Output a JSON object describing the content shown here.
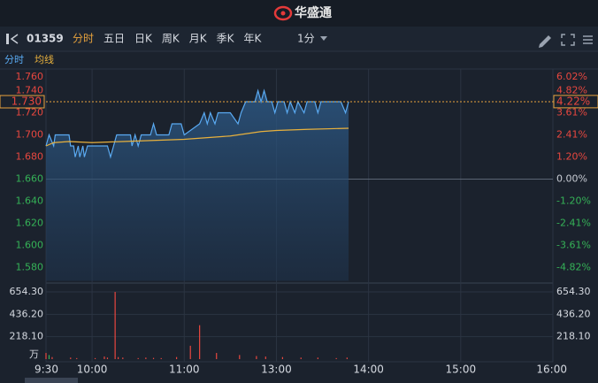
{
  "header": {
    "logo": "华盛通"
  },
  "toolbar": {
    "code": "01359",
    "tabs": [
      "分时",
      "五日",
      "日K",
      "周K",
      "月K",
      "季K",
      "年K"
    ],
    "active_tab": 0,
    "period": "1分"
  },
  "chart_data": [
    {
      "type": "line",
      "xlim": [
        0,
        330
      ],
      "ylim": [
        1.568,
        1.758
      ],
      "yticks": [
        {
          "value": 1.76,
          "label": "1.760"
        },
        {
          "value": 1.74,
          "label": "1.740"
        },
        {
          "value": 1.72,
          "label": "1.720"
        },
        {
          "value": 1.7,
          "label": "1.700"
        },
        {
          "value": 1.68,
          "label": "1.680"
        },
        {
          "value": 1.66,
          "label": "1.660"
        },
        {
          "value": 1.64,
          "label": "1.640"
        },
        {
          "value": 1.62,
          "label": "1.620"
        },
        {
          "value": 1.6,
          "label": "1.600"
        },
        {
          "value": 1.58,
          "label": "1.580"
        }
      ],
      "y2lim": [
        -5.54,
        5.9
      ],
      "y2ticks": [
        {
          "value": 6.02,
          "label": "6.02%"
        },
        {
          "value": 4.82,
          "label": "4.82%"
        },
        {
          "value": 3.61,
          "label": "3.61%"
        },
        {
          "value": 2.41,
          "label": "2.41%"
        },
        {
          "value": 1.2,
          "label": "1.20%"
        },
        {
          "value": 0,
          "label": "0.00%"
        },
        {
          "value": -1.2,
          "label": "-1.20%"
        },
        {
          "value": -2.41,
          "label": "-2.41%"
        },
        {
          "value": -3.61,
          "label": "-3.61%"
        },
        {
          "value": -4.82,
          "label": "-4.82%"
        }
      ],
      "up_color": "#e8473f",
      "down_color": "#35b257",
      "flat_color": "#c8ccd4",
      "last_price": {
        "value": 1.73,
        "label": "1.730"
      },
      "last_change": {
        "value": 4.22,
        "label": "4.22%"
      },
      "series": [
        {
          "name": "分时",
          "color": "#5aaaf2",
          "x": [
            0,
            2,
            5,
            6,
            15,
            16,
            18,
            19,
            21,
            22,
            24,
            25,
            27,
            40,
            42,
            44,
            46,
            55,
            56,
            58,
            60,
            62,
            68,
            70,
            72,
            80,
            82,
            88,
            90,
            100,
            103,
            105,
            107,
            110,
            112,
            120,
            125,
            127,
            130,
            136,
            138,
            140,
            142,
            144,
            147,
            149,
            151,
            155,
            157,
            159,
            162,
            164,
            168,
            170,
            175,
            177,
            179,
            185,
            188,
            192,
            195,
            197
          ],
          "values": [
            1.69,
            1.7,
            1.69,
            1.7,
            1.7,
            1.69,
            1.69,
            1.68,
            1.69,
            1.68,
            1.69,
            1.68,
            1.69,
            1.69,
            1.68,
            1.69,
            1.7,
            1.7,
            1.69,
            1.7,
            1.69,
            1.7,
            1.7,
            1.71,
            1.7,
            1.7,
            1.71,
            1.71,
            1.7,
            1.71,
            1.72,
            1.71,
            1.72,
            1.71,
            1.72,
            1.72,
            1.71,
            1.72,
            1.73,
            1.73,
            1.74,
            1.73,
            1.74,
            1.73,
            1.73,
            1.72,
            1.73,
            1.73,
            1.72,
            1.73,
            1.72,
            1.73,
            1.72,
            1.73,
            1.73,
            1.72,
            1.73,
            1.73,
            1.73,
            1.73,
            1.72,
            1.73
          ]
        },
        {
          "name": "均线",
          "color": "#e8b13d",
          "x": [
            0,
            5,
            15,
            30,
            50,
            70,
            90,
            110,
            120,
            130,
            140,
            150,
            170,
            197
          ],
          "values": [
            1.69,
            1.693,
            1.694,
            1.693,
            1.694,
            1.695,
            1.696,
            1.698,
            1.699,
            1.701,
            1.703,
            1.704,
            1.705,
            1.706
          ]
        }
      ]
    },
    {
      "type": "bar",
      "unit": "万",
      "xlim": [
        0,
        330
      ],
      "xticks": [
        {
          "value": 0,
          "label": "9:30"
        },
        {
          "value": 30,
          "label": "10:00"
        },
        {
          "value": 90,
          "label": "11:00"
        },
        {
          "value": 150,
          "label": "13:00"
        },
        {
          "value": 210,
          "label": "14:00"
        },
        {
          "value": 270,
          "label": "15:00"
        },
        {
          "value": 330,
          "label": "16:00"
        }
      ],
      "ylim": [
        0,
        654.3
      ],
      "yticks": [
        {
          "value": 218.1,
          "label": "218.10"
        },
        {
          "value": 436.2,
          "label": "436.20"
        },
        {
          "value": 654.3,
          "label": "654.30"
        }
      ],
      "x": [
        0,
        2,
        4,
        16,
        20,
        32,
        38,
        40,
        45,
        47,
        50,
        60,
        65,
        70,
        75,
        85,
        94,
        100,
        111,
        126,
        137,
        143,
        154,
        166,
        177,
        189,
        196
      ],
      "values": [
        60,
        40,
        20,
        15,
        10,
        10,
        25,
        15,
        654,
        20,
        15,
        10,
        15,
        12,
        10,
        20,
        130,
        330,
        60,
        40,
        30,
        25,
        20,
        15,
        15,
        10,
        15
      ],
      "colors": [
        "#e8473f",
        "#35b257",
        "#e8473f",
        "#e8473f",
        "#e8473f",
        "#e8473f",
        "#e8473f",
        "#e8473f",
        "#e8473f",
        "#e8473f",
        "#e8473f",
        "#e8473f",
        "#e8473f",
        "#e8473f",
        "#e8473f",
        "#e8473f",
        "#e8473f",
        "#e8473f",
        "#e8473f",
        "#e8473f",
        "#e8473f",
        "#e8473f",
        "#e8473f",
        "#e8473f",
        "#e8473f",
        "#e8473f",
        "#e8473f"
      ]
    }
  ]
}
